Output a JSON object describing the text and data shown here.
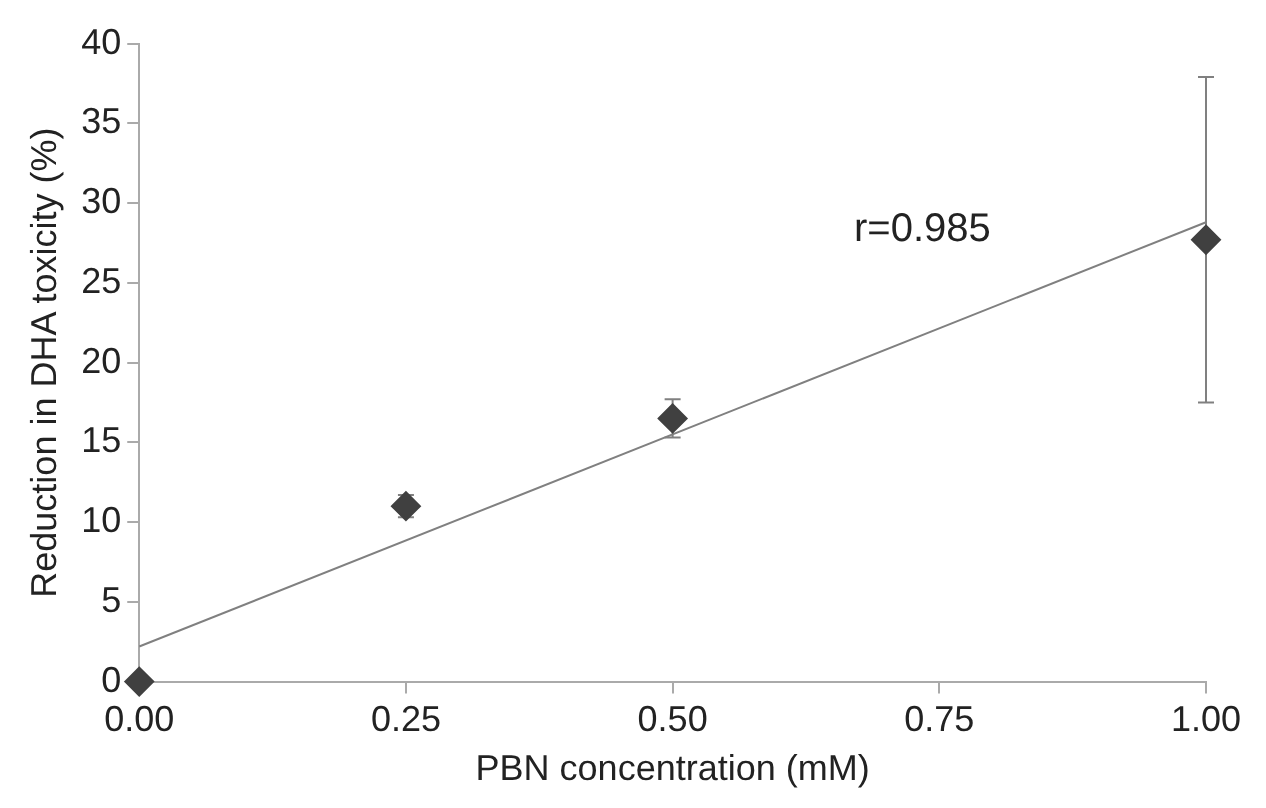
{
  "chart_data": {
    "type": "scatter",
    "xlabel": "PBN concentration (mM)",
    "ylabel": "Reduction in DHA toxicity (%)",
    "annotations": [
      "r=0.985"
    ],
    "x": [
      0,
      0.25,
      0.5,
      1
    ],
    "series": [
      {
        "type": "scatter",
        "color": "#404040",
        "values": [
          0,
          11,
          16.5,
          27.7
        ],
        "errors": [
          null,
          0.7,
          1.2,
          10.2
        ],
        "marker": "diamond"
      },
      {
        "type": "line",
        "color": "#808080",
        "x": [
          0,
          1
        ],
        "values": [
          2.2,
          28.8
        ],
        "marker": "none"
      }
    ],
    "xlim": [
      0,
      1
    ],
    "xticks": [
      {
        "value": 0,
        "label": "0.00"
      },
      {
        "value": 0.25,
        "label": "0.25"
      },
      {
        "value": 0.5,
        "label": "0.50"
      },
      {
        "value": 0.75,
        "label": "0.75"
      },
      {
        "value": 1,
        "label": "1.00"
      }
    ],
    "ylim": [
      0,
      40
    ],
    "yticks": [
      0,
      5,
      10,
      15,
      20,
      25,
      30,
      35,
      40
    ],
    "grid": false,
    "legend": false
  }
}
